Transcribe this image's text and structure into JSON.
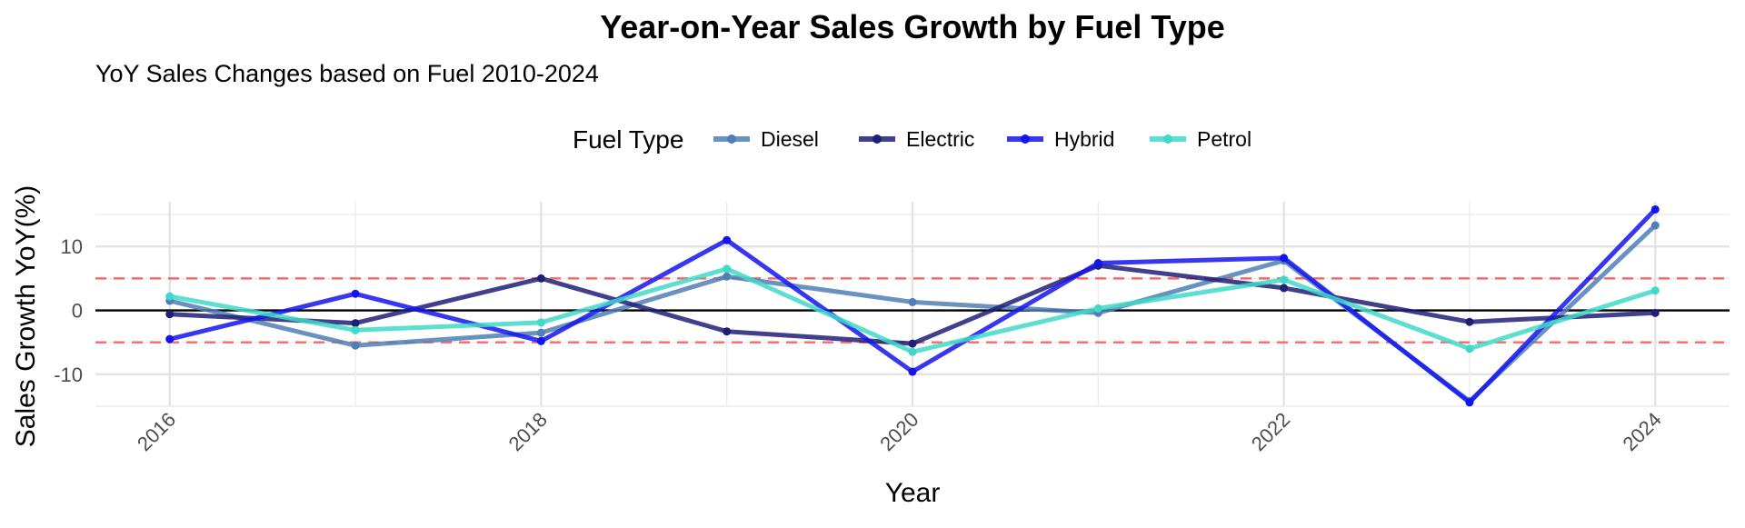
{
  "chart_data": {
    "type": "line",
    "title": "Year-on-Year Sales Growth by Fuel Type",
    "subtitle": "YoY Sales Changes based on Fuel 2010-2024",
    "xlabel": "Year",
    "ylabel": "Sales Growth YoY(%)",
    "legend_title": "Fuel Type",
    "legend_position": "top",
    "grid": true,
    "x": [
      2016,
      2017,
      2018,
      2019,
      2020,
      2021,
      2022,
      2023,
      2024
    ],
    "xlim": [
      2015.6,
      2024.4
    ],
    "ylim": [
      -15,
      17
    ],
    "xticks": [
      {
        "value": 2016,
        "label": "2016"
      },
      {
        "value": 2018,
        "label": "2018"
      },
      {
        "value": 2020,
        "label": "2020"
      },
      {
        "value": 2022,
        "label": "2022"
      },
      {
        "value": 2024,
        "label": "2024"
      }
    ],
    "yticks": [
      {
        "value": 10,
        "label": "10"
      },
      {
        "value": 0,
        "label": "0"
      },
      {
        "value": -10,
        "label": "-10"
      }
    ],
    "reference_lines": [
      {
        "value": 0,
        "color": "#000000",
        "style": "solid"
      },
      {
        "value": 5,
        "color": "#ff6666",
        "style": "dashed"
      },
      {
        "value": -5,
        "color": "#ff6666",
        "style": "dashed"
      }
    ],
    "series": [
      {
        "name": "Diesel",
        "color": "#4f7fb5",
        "values": [
          1.5,
          -5.5,
          -3.5,
          5.3,
          1.3,
          -0.4,
          7.8,
          -14.2,
          13.3
        ]
      },
      {
        "name": "Electric",
        "color": "#1f1f78",
        "values": [
          -0.6,
          -2.0,
          5.0,
          -3.3,
          -5.2,
          7.0,
          3.5,
          -1.8,
          -0.4
        ]
      },
      {
        "name": "Hybrid",
        "color": "#1414ee",
        "values": [
          -4.5,
          2.6,
          -4.8,
          11.0,
          -9.6,
          7.4,
          8.2,
          -14.4,
          15.8
        ]
      },
      {
        "name": "Petrol",
        "color": "#40d9c8",
        "values": [
          2.2,
          -3.1,
          -1.9,
          6.5,
          -6.5,
          0.3,
          4.8,
          -6.0,
          3.1
        ]
      }
    ]
  }
}
